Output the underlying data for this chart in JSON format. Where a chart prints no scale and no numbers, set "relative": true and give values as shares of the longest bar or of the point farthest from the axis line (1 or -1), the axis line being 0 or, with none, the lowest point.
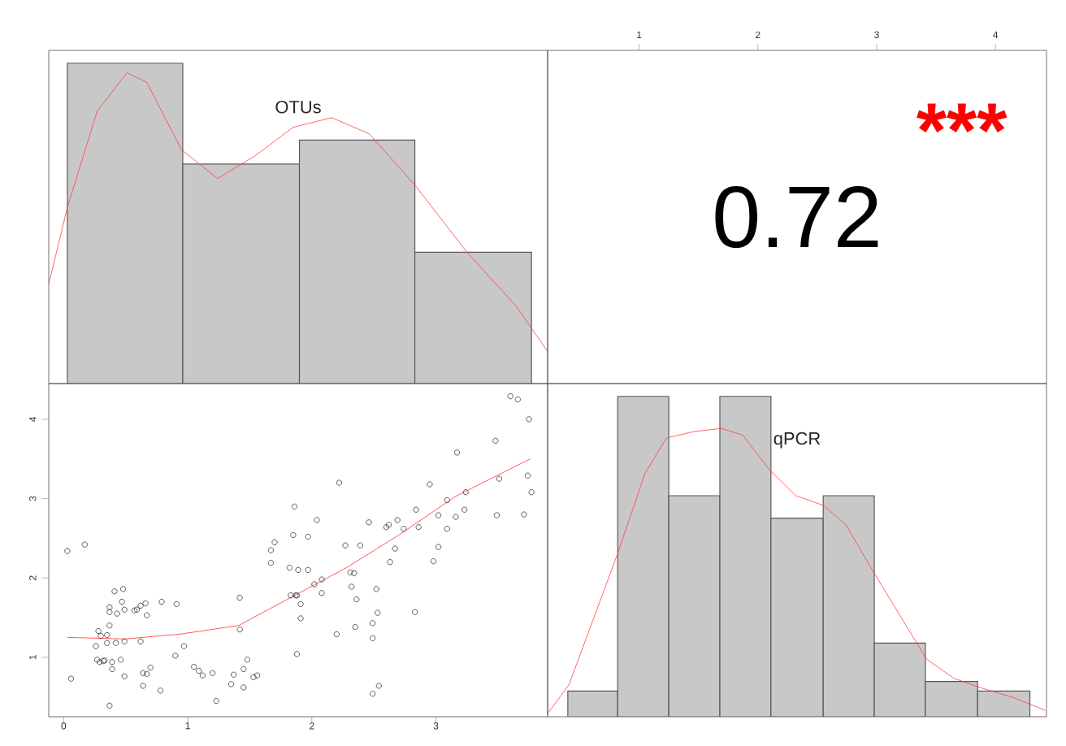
{
  "chart_data": [
    {
      "type": "histogram",
      "title": "OTUs",
      "relative": true,
      "tick_labels": "x",
      "xlim": [
        -0.12,
        3.9
      ],
      "xticks": [
        0,
        1,
        2,
        3
      ],
      "color": "#c8c8c8",
      "bins": [
        0.03,
        0.96,
        1.9,
        2.83,
        3.77
      ],
      "values": [
        1,
        0.685,
        0.76,
        0.41
      ],
      "series": [
        {
          "type": "line",
          "color": "#ff4040",
          "x": [
            -0.12,
            0.03,
            0.27,
            0.51,
            0.67,
            0.95,
            1.24,
            1.54,
            1.85,
            2.16,
            2.46,
            2.83,
            3.25,
            3.65,
            3.9
          ],
          "values": [
            0.31,
            0.55,
            0.85,
            0.97,
            0.94,
            0.73,
            0.64,
            0.71,
            0.8,
            0.83,
            0.78,
            0.62,
            0.41,
            0.24,
            0.1
          ]
        }
      ]
    },
    {
      "type": "scatter",
      "tick_labels": "y",
      "xlim": [
        -0.12,
        3.9
      ],
      "ylim": [
        0.25,
        4.45
      ],
      "xticks": [
        0,
        1,
        2,
        3
      ],
      "yticks": [
        1,
        2,
        3,
        4
      ],
      "series": [
        {
          "type": "scatter",
          "marker": "circle",
          "color": "#333333",
          "x": [
            0.03,
            0.06,
            0.17,
            0.26,
            0.27,
            0.28,
            0.29,
            0.3,
            0.32,
            0.33,
            0.35,
            0.35,
            0.37,
            0.37,
            0.37,
            0.37,
            0.39,
            0.39,
            0.41,
            0.42,
            0.43,
            0.46,
            0.47,
            0.48,
            0.49,
            0.49,
            0.49,
            0.57,
            0.59,
            0.62,
            0.62,
            0.64,
            0.64,
            0.66,
            0.67,
            0.67,
            0.7,
            0.78,
            0.79,
            0.9,
            0.91,
            0.97,
            1.05,
            1.09,
            1.12,
            1.2,
            1.23,
            1.35,
            1.37,
            1.42,
            1.42,
            1.45,
            1.45,
            1.48,
            1.53,
            1.56,
            1.67,
            1.67,
            1.7,
            1.82,
            1.83,
            1.85,
            1.86,
            1.87,
            1.88,
            1.88,
            1.89,
            1.91,
            1.91,
            1.97,
            1.97,
            2.02,
            2.04,
            2.08,
            2.08,
            2.2,
            2.22,
            2.27,
            2.31,
            2.32,
            2.34,
            2.35,
            2.36,
            2.39,
            2.46,
            2.49,
            2.49,
            2.49,
            2.52,
            2.53,
            2.54,
            2.6,
            2.62,
            2.63,
            2.67,
            2.69,
            2.74,
            2.83,
            2.84,
            2.86,
            2.95,
            2.98,
            3.02,
            3.02,
            3.09,
            3.09,
            3.16,
            3.17,
            3.23,
            3.24,
            3.48,
            3.49,
            3.51,
            3.6,
            3.66,
            3.71,
            3.74,
            3.75,
            3.77
          ],
          "values": [
            2.34,
            0.73,
            2.42,
            1.14,
            0.97,
            1.33,
            0.94,
            1.27,
            0.95,
            0.96,
            1.28,
            1.18,
            0.39,
            1.4,
            1.57,
            1.63,
            0.94,
            0.85,
            1.83,
            1.18,
            1.55,
            0.97,
            1.7,
            1.86,
            1.6,
            1.2,
            0.76,
            1.59,
            1.6,
            1.2,
            1.65,
            0.8,
            0.64,
            1.68,
            1.53,
            0.79,
            0.87,
            0.58,
            1.7,
            1.02,
            1.67,
            1.14,
            0.88,
            0.83,
            0.77,
            0.8,
            0.45,
            0.66,
            0.78,
            1.35,
            1.75,
            0.62,
            0.85,
            0.97,
            0.75,
            0.77,
            2.19,
            2.35,
            2.45,
            2.13,
            1.78,
            2.54,
            2.9,
            1.78,
            1.78,
            1.04,
            2.1,
            1.67,
            1.49,
            2.1,
            2.52,
            1.92,
            2.73,
            1.98,
            1.81,
            1.29,
            3.2,
            2.41,
            2.07,
            1.89,
            2.06,
            1.38,
            1.73,
            2.41,
            2.7,
            1.43,
            1.24,
            0.54,
            1.86,
            1.56,
            0.64,
            2.64,
            2.67,
            2.2,
            2.37,
            2.73,
            2.62,
            1.57,
            2.86,
            2.64,
            3.18,
            2.21,
            2.39,
            2.79,
            2.62,
            2.98,
            2.77,
            3.58,
            2.86,
            3.08,
            3.73,
            2.79,
            3.25,
            4.29,
            4.25,
            2.8,
            3.29,
            4.0,
            3.08
          ]
        },
        {
          "type": "line",
          "color": "#ff3030",
          "x": [
            0.03,
            0.49,
            0.93,
            1.41,
            1.85,
            2.28,
            2.72,
            3.16,
            3.76
          ],
          "values": [
            1.25,
            1.23,
            1.29,
            1.4,
            1.77,
            2.13,
            2.56,
            3.03,
            3.5
          ]
        }
      ]
    },
    {
      "type": "histogram",
      "title": "qPCR",
      "relative": true,
      "tick_labels": "x",
      "xlim": [
        0.23,
        4.43
      ],
      "xticks": [
        1,
        2,
        3,
        4
      ],
      "annotations": [
        "0.72",
        "***"
      ],
      "color": "#c8c8c8",
      "bins": [
        0.4,
        0.82,
        1.25,
        1.68,
        2.11,
        2.55,
        2.98,
        3.41,
        3.85,
        4.29
      ],
      "values": [
        0.08,
        1,
        0.69,
        1,
        0.62,
        0.69,
        0.23,
        0.11,
        0.08
      ],
      "series": [
        {
          "type": "line",
          "color": "#ff4040",
          "x": [
            0.23,
            0.41,
            0.59,
            0.82,
            1.05,
            1.23,
            1.46,
            1.69,
            1.87,
            2.1,
            2.32,
            2.55,
            2.74,
            2.96,
            3.19,
            3.42,
            3.65,
            3.88,
            4.15,
            4.42
          ],
          "values": [
            0.01,
            0.1,
            0.28,
            0.51,
            0.76,
            0.87,
            0.89,
            0.9,
            0.88,
            0.77,
            0.69,
            0.66,
            0.6,
            0.46,
            0.32,
            0.18,
            0.12,
            0.09,
            0.06,
            0.02
          ]
        }
      ]
    }
  ]
}
